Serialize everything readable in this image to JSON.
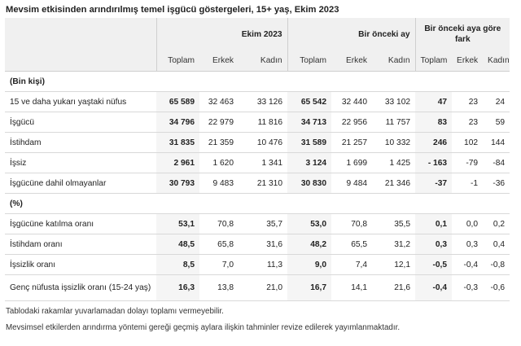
{
  "title": "Mevsim etkisinden arındırılmış temel işgücü göstergeleri, 15+ yaş, Ekim 2023",
  "groups": [
    "Ekim 2023",
    "Bir önceki ay",
    "Bir önceki aya göre fark"
  ],
  "subheaders": [
    "Toplam",
    "Erkek",
    "Kadın",
    "Toplam",
    "Erkek",
    "Kadın",
    "Toplam",
    "Erkek",
    "Kadın"
  ],
  "sections": {
    "thousand": "(Bin kişi)",
    "percent": "(%)"
  },
  "rows_thousand": [
    {
      "label": "15 ve daha yukarı yaştaki nüfus",
      "values": [
        "65 589",
        "32 463",
        "33 126",
        "65 542",
        "32 440",
        "33 102",
        "47",
        "23",
        "24"
      ]
    },
    {
      "label": "İşgücü",
      "values": [
        "34 796",
        "22 979",
        "11 816",
        "34 713",
        "22 956",
        "11 757",
        "83",
        "23",
        "59"
      ]
    },
    {
      "label": "İstihdam",
      "values": [
        "31 835",
        "21 359",
        "10 476",
        "31 589",
        "21 257",
        "10 332",
        "246",
        "102",
        "144"
      ]
    },
    {
      "label": "İşsiz",
      "values": [
        "2 961",
        "1 620",
        "1 341",
        "3 124",
        "1 699",
        "1 425",
        "- 163",
        "-79",
        "-84"
      ]
    },
    {
      "label": "İşgücüne dahil olmayanlar",
      "values": [
        "30 793",
        "9 483",
        "21 310",
        "30 830",
        "9 484",
        "21 346",
        "-37",
        "-1",
        "-36"
      ]
    }
  ],
  "rows_percent": [
    {
      "label": "İşgücüne katılma oranı",
      "values": [
        "53,1",
        "70,8",
        "35,7",
        "53,0",
        "70,8",
        "35,5",
        "0,1",
        "0,0",
        "0,2"
      ]
    },
    {
      "label": "İstihdam oranı",
      "values": [
        "48,5",
        "65,8",
        "31,6",
        "48,2",
        "65,5",
        "31,2",
        "0,3",
        "0,3",
        "0,4"
      ]
    },
    {
      "label": "İşsizlik oranı",
      "values": [
        "8,5",
        "7,0",
        "11,3",
        "9,0",
        "7,4",
        "12,1",
        "-0,5",
        "-0,4",
        "-0,8"
      ]
    },
    {
      "label": "Genç nüfusta işsizlik oranı (15-24 yaş)",
      "values": [
        "16,3",
        "13,8",
        "21,0",
        "16,7",
        "14,1",
        "21,6",
        "-0,4",
        "-0,3",
        "-0,6"
      ]
    }
  ],
  "notes": [
    "Tablodaki rakamlar yuvarlamadan dolayı toplamı vermeyebilir.",
    "Mevsimsel etkilerden arındırma yöntemi gereği geçmiş aylara ilişkin tahminler revize edilerek yayımlanmaktadır."
  ]
}
